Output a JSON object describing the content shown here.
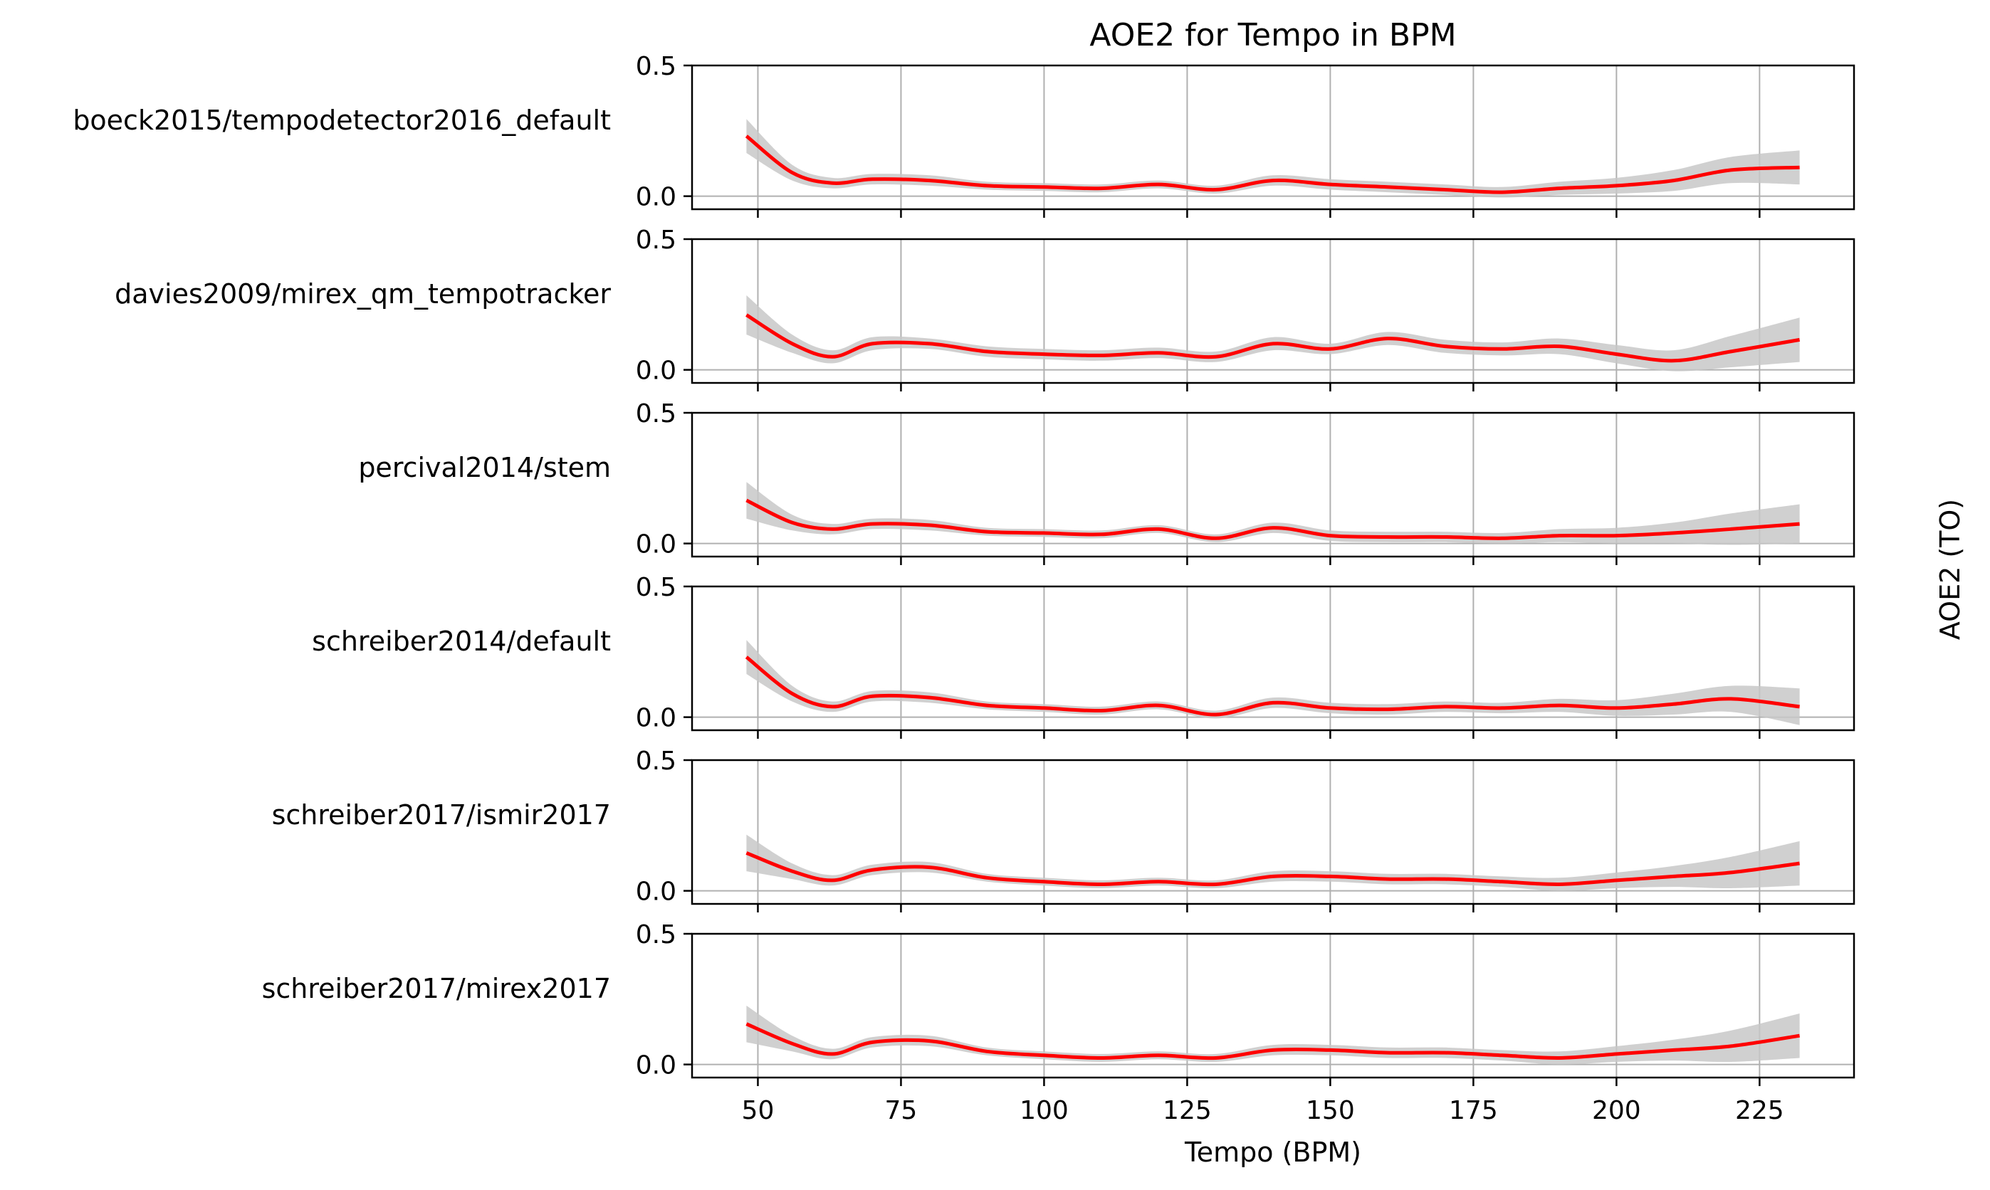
{
  "chart_data": {
    "type": "line",
    "title": "AOE2 for Tempo in BPM",
    "xlabel": "Tempo (BPM)",
    "ylabel": "AOE2 (TO)",
    "xlim": [
      38.5,
      241.5
    ],
    "ylim": [
      -0.05,
      0.5
    ],
    "x_ticks": [
      50,
      75,
      100,
      125,
      150,
      175,
      200,
      225
    ],
    "y_ticks": [
      0.0,
      0.5
    ],
    "grid": true,
    "line_color": "#ff0000",
    "band_color": "#c8c8c8",
    "x": [
      48,
      56,
      63,
      70,
      80,
      90,
      100,
      110,
      120,
      130,
      140,
      150,
      160,
      170,
      180,
      190,
      200,
      210,
      220,
      232
    ],
    "series": [
      {
        "name": "boeck2015/tempodetector2016_default",
        "values": [
          0.23,
          0.09,
          0.05,
          0.065,
          0.06,
          0.04,
          0.035,
          0.03,
          0.045,
          0.025,
          0.06,
          0.045,
          0.035,
          0.025,
          0.015,
          0.03,
          0.04,
          0.06,
          0.1,
          0.11
        ],
        "band": [
          0.065,
          0.03,
          0.02,
          0.02,
          0.02,
          0.015,
          0.015,
          0.015,
          0.015,
          0.015,
          0.02,
          0.02,
          0.02,
          0.02,
          0.02,
          0.025,
          0.03,
          0.04,
          0.05,
          0.065
        ]
      },
      {
        "name": "davies2009/mirex_qm_tempotracker",
        "values": [
          0.21,
          0.1,
          0.05,
          0.1,
          0.1,
          0.07,
          0.06,
          0.055,
          0.065,
          0.05,
          0.1,
          0.08,
          0.12,
          0.09,
          0.08,
          0.09,
          0.06,
          0.035,
          0.07,
          0.115
        ],
        "band": [
          0.075,
          0.035,
          0.025,
          0.025,
          0.02,
          0.02,
          0.02,
          0.02,
          0.02,
          0.02,
          0.025,
          0.02,
          0.025,
          0.025,
          0.025,
          0.03,
          0.035,
          0.04,
          0.06,
          0.085
        ]
      },
      {
        "name": "percival2014/stem",
        "values": [
          0.165,
          0.08,
          0.055,
          0.075,
          0.07,
          0.045,
          0.04,
          0.035,
          0.055,
          0.02,
          0.06,
          0.03,
          0.025,
          0.025,
          0.02,
          0.03,
          0.03,
          0.04,
          0.055,
          0.075
        ],
        "band": [
          0.07,
          0.03,
          0.02,
          0.02,
          0.02,
          0.015,
          0.015,
          0.015,
          0.015,
          0.015,
          0.02,
          0.02,
          0.02,
          0.02,
          0.02,
          0.025,
          0.03,
          0.04,
          0.06,
          0.075
        ]
      },
      {
        "name": "schreiber2014/default",
        "values": [
          0.23,
          0.09,
          0.04,
          0.08,
          0.075,
          0.045,
          0.035,
          0.025,
          0.045,
          0.01,
          0.055,
          0.035,
          0.03,
          0.04,
          0.035,
          0.045,
          0.035,
          0.05,
          0.07,
          0.04
        ],
        "band": [
          0.065,
          0.03,
          0.02,
          0.02,
          0.02,
          0.015,
          0.015,
          0.015,
          0.015,
          0.015,
          0.02,
          0.02,
          0.02,
          0.02,
          0.02,
          0.025,
          0.03,
          0.04,
          0.05,
          0.07
        ]
      },
      {
        "name": "schreiber2017/ismir2017",
        "values": [
          0.145,
          0.075,
          0.04,
          0.08,
          0.09,
          0.05,
          0.035,
          0.025,
          0.035,
          0.025,
          0.055,
          0.055,
          0.045,
          0.045,
          0.035,
          0.025,
          0.04,
          0.055,
          0.07,
          0.105
        ],
        "band": [
          0.07,
          0.03,
          0.02,
          0.02,
          0.02,
          0.015,
          0.015,
          0.015,
          0.015,
          0.015,
          0.02,
          0.02,
          0.02,
          0.02,
          0.02,
          0.025,
          0.03,
          0.04,
          0.06,
          0.085
        ]
      },
      {
        "name": "schreiber2017/mirex2017",
        "values": [
          0.155,
          0.08,
          0.04,
          0.085,
          0.09,
          0.05,
          0.035,
          0.025,
          0.035,
          0.025,
          0.055,
          0.055,
          0.045,
          0.045,
          0.035,
          0.025,
          0.04,
          0.055,
          0.07,
          0.11
        ],
        "band": [
          0.07,
          0.03,
          0.02,
          0.02,
          0.02,
          0.015,
          0.015,
          0.015,
          0.015,
          0.015,
          0.02,
          0.02,
          0.02,
          0.02,
          0.02,
          0.025,
          0.03,
          0.04,
          0.06,
          0.085
        ]
      }
    ]
  }
}
